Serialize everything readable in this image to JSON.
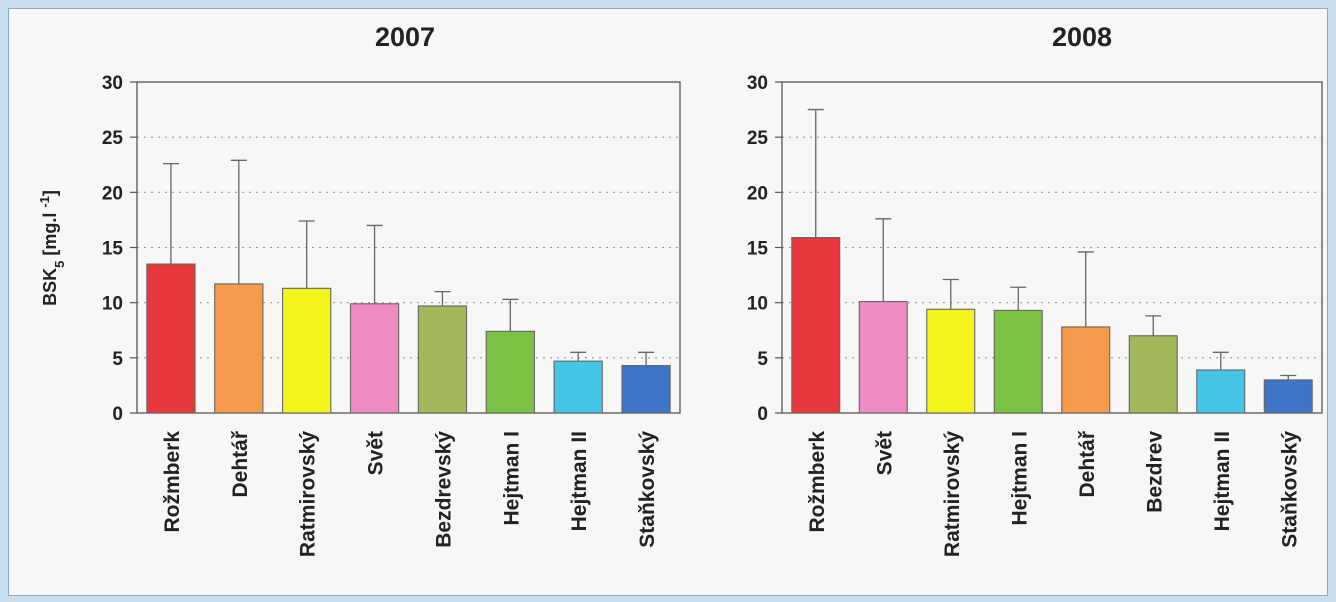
{
  "y_axis_label": "BSK5 [mg.l -1]",
  "chart_data": [
    {
      "type": "bar",
      "title": "2007",
      "ylabel": "BSK5 [mg.l -1]",
      "ylim": [
        0,
        30
      ],
      "yticks": [
        0,
        5,
        10,
        15,
        20,
        25,
        30
      ],
      "grid": true,
      "categories": [
        "Rožmberk",
        "Dehtář",
        "Ratmirovský",
        "Svět",
        "Bezdrevský",
        "Hejtman I",
        "Hejtman II",
        "Staňkovský"
      ],
      "values": [
        13.5,
        11.7,
        11.3,
        9.9,
        9.7,
        7.4,
        4.7,
        4.3
      ],
      "error_upper": [
        22.6,
        22.9,
        17.4,
        17.0,
        11.0,
        10.3,
        5.5,
        5.5
      ],
      "colors": [
        "#e9383b",
        "#f69a4c",
        "#f5f51e",
        "#f08ac3",
        "#a3b85a",
        "#7cc245",
        "#45c6e6",
        "#3f74c9"
      ]
    },
    {
      "type": "bar",
      "title": "2008",
      "ylim": [
        0,
        30
      ],
      "yticks": [
        0,
        5,
        10,
        15,
        20,
        25,
        30
      ],
      "grid": true,
      "categories": [
        "Rožmberk",
        "Svět",
        "Ratmirovský",
        "Hejtman I",
        "Dehtář",
        "Bezdrev",
        "Hejtman II",
        "Staňkovský"
      ],
      "values": [
        15.9,
        10.1,
        9.4,
        9.3,
        7.8,
        7.0,
        3.9,
        3.0
      ],
      "error_upper": [
        27.5,
        17.6,
        12.1,
        11.4,
        14.6,
        8.8,
        5.5,
        3.4
      ],
      "colors": [
        "#e9383b",
        "#f08ac3",
        "#f5f51e",
        "#7cc245",
        "#f69a4c",
        "#a3b85a",
        "#45c6e6",
        "#3f74c9"
      ]
    }
  ]
}
